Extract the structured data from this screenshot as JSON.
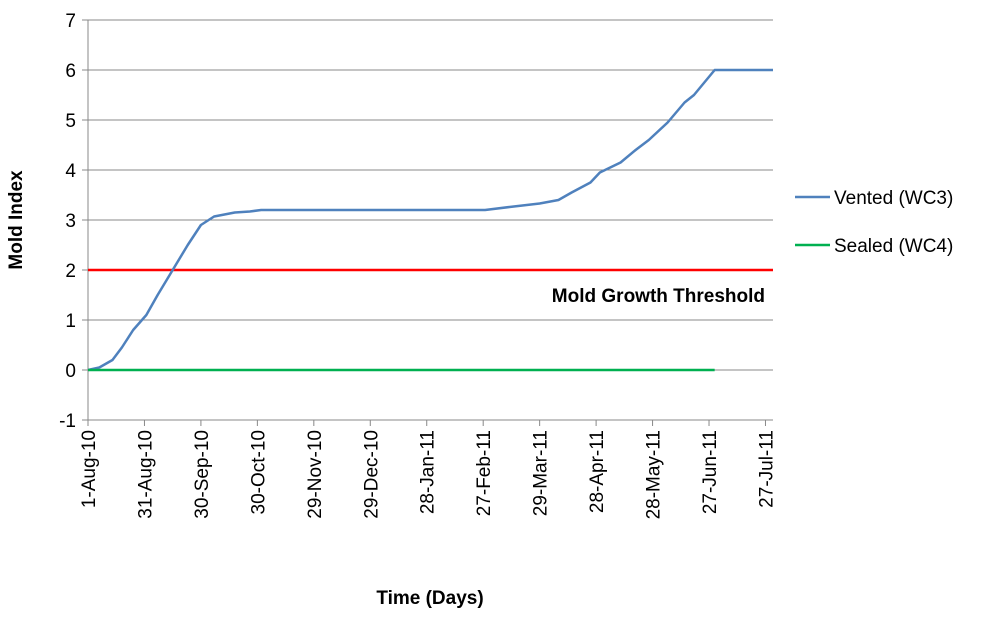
{
  "chart_data": {
    "type": "line",
    "y_label": "Mold Index",
    "x_label": "Time (Days)",
    "xlim": [
      "1-Aug-10",
      "31-Jul-11"
    ],
    "xticks": [
      "1-Aug-10",
      "31-Aug-10",
      "30-Sep-10",
      "30-Oct-10",
      "29-Nov-10",
      "29-Dec-10",
      "28-Jan-11",
      "27-Feb-11",
      "29-Mar-11",
      "28-Apr-11",
      "28-May-11",
      "27-Jun-11",
      "27-Jul-11"
    ],
    "ylim": [
      -1,
      7
    ],
    "yticks": [
      -1,
      0,
      1,
      2,
      3,
      4,
      5,
      6,
      7
    ],
    "grid": true,
    "legend": "right",
    "threshold": {
      "value": 2,
      "color": "#ff0000",
      "label": "Mold Growth Threshold"
    },
    "series": [
      {
        "name": "Vented (WC3)",
        "color": "#4f81bd",
        "x": [
          "1-Aug-10",
          "7-Aug-10",
          "14-Aug-10",
          "19-Aug-10",
          "25-Aug-10",
          "1-Sep-10",
          "7-Sep-10",
          "15-Sep-10",
          "23-Sep-10",
          "30-Sep-10",
          "7-Oct-10",
          "18-Oct-10",
          "26-Oct-10",
          "1-Nov-10",
          "28-Feb-11",
          "13-Mar-11",
          "29-Mar-11",
          "8-Apr-11",
          "15-Apr-11",
          "25-Apr-11",
          "30-Apr-11",
          "11-May-11",
          "19-May-11",
          "26-May-11",
          "5-Jun-11",
          "14-Jun-11",
          "19-Jun-11",
          "30-Jun-11",
          "31-Jul-11"
        ],
        "values": [
          0,
          0.05,
          0.2,
          0.45,
          0.8,
          1.1,
          1.5,
          2.0,
          2.5,
          2.9,
          3.07,
          3.15,
          3.17,
          3.2,
          3.2,
          3.26,
          3.33,
          3.4,
          3.55,
          3.75,
          3.95,
          4.15,
          4.4,
          4.6,
          4.95,
          5.35,
          5.5,
          6.0,
          6.0
        ]
      },
      {
        "name": "Sealed (WC4)",
        "color": "#00b050",
        "x": [
          "1-Aug-10",
          "30-Jun-11"
        ],
        "values": [
          0,
          0
        ]
      }
    ]
  }
}
